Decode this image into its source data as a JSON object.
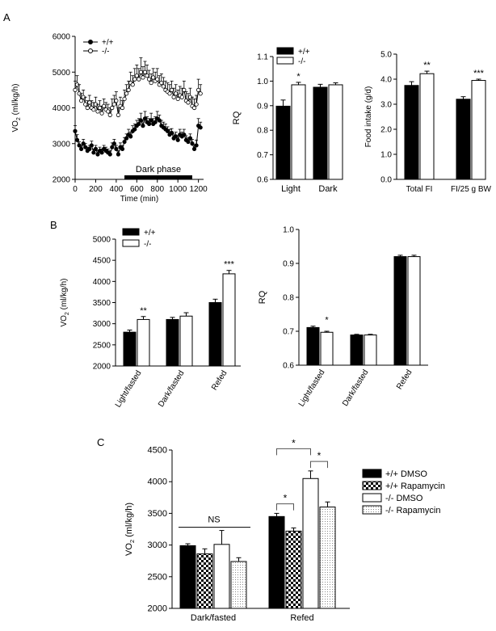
{
  "panel_labels": {
    "A": "A",
    "B": "B",
    "C": "C"
  },
  "legend_labels": {
    "wt": "+/+",
    "ko": "-/-"
  },
  "vo2_axis_label": "VO2 (ml/kg/h)",
  "vo2_sub": "2",
  "vo2_unit": " (ml/kg/h)",
  "colors": {
    "wt": "#000000",
    "ko": "#ffffff",
    "axis": "#000000"
  },
  "chart_data": [
    {
      "id": "A1",
      "type": "line",
      "xlabel": "Time (min)",
      "ylabel": "VO2 (ml/kg/h)",
      "xlim": [
        0,
        1250
      ],
      "ylim": [
        2000,
        6000
      ],
      "xticks": [
        0,
        200,
        400,
        600,
        800,
        1000,
        1200
      ],
      "yticks": [
        2000,
        3000,
        4000,
        5000,
        6000
      ],
      "annotation": "Dark phase",
      "dark_phase": [
        480,
        1140
      ],
      "series": [
        {
          "name": "+/+",
          "marker": "filled",
          "x": [
            0,
            20,
            40,
            60,
            80,
            100,
            120,
            140,
            160,
            180,
            200,
            220,
            240,
            260,
            280,
            300,
            320,
            340,
            360,
            380,
            400,
            420,
            440,
            460,
            480,
            500,
            520,
            540,
            560,
            580,
            600,
            620,
            640,
            660,
            680,
            700,
            720,
            740,
            760,
            780,
            800,
            820,
            840,
            860,
            880,
            900,
            920,
            940,
            960,
            980,
            1000,
            1020,
            1040,
            1060,
            1080,
            1100,
            1120,
            1140,
            1160,
            1180,
            1200,
            1220
          ],
          "y": [
            3350,
            3100,
            2950,
            2850,
            3000,
            2900,
            2800,
            2850,
            2950,
            2750,
            2850,
            2700,
            2800,
            2750,
            2850,
            2800,
            2750,
            2700,
            2900,
            3000,
            2850,
            2700,
            2900,
            2850,
            3050,
            3150,
            3250,
            3200,
            3350,
            3400,
            3500,
            3550,
            3650,
            3500,
            3700,
            3600,
            3550,
            3650,
            3550,
            3600,
            3700,
            3650,
            3500,
            3450,
            3400,
            3350,
            3250,
            3300,
            3150,
            3200,
            3100,
            3250,
            3200,
            3250,
            3100,
            3050,
            3150,
            3000,
            2850,
            2950,
            3500,
            3450
          ],
          "err": [
            150,
            150,
            100,
            100,
            120,
            100,
            100,
            100,
            120,
            100,
            100,
            100,
            100,
            100,
            100,
            100,
            100,
            100,
            120,
            120,
            100,
            100,
            120,
            100,
            120,
            120,
            150,
            120,
            150,
            150,
            150,
            150,
            200,
            150,
            200,
            150,
            150,
            200,
            150,
            150,
            200,
            150,
            150,
            150,
            150,
            120,
            150,
            120,
            120,
            120,
            120,
            150,
            120,
            150,
            120,
            120,
            120,
            120,
            120,
            150,
            200,
            150
          ]
        },
        {
          "name": "-/-",
          "marker": "open",
          "x": [
            0,
            20,
            40,
            60,
            80,
            100,
            120,
            140,
            160,
            180,
            200,
            220,
            240,
            260,
            280,
            300,
            320,
            340,
            360,
            380,
            400,
            420,
            440,
            460,
            480,
            500,
            520,
            540,
            560,
            580,
            600,
            620,
            640,
            660,
            680,
            700,
            720,
            740,
            760,
            780,
            800,
            820,
            840,
            860,
            880,
            900,
            920,
            940,
            960,
            980,
            1000,
            1020,
            1040,
            1060,
            1080,
            1100,
            1120,
            1140,
            1160,
            1180,
            1200,
            1220
          ],
          "y": [
            4500,
            4650,
            4400,
            4200,
            4300,
            4100,
            4000,
            4150,
            4000,
            3950,
            4100,
            3900,
            4000,
            3850,
            4050,
            3950,
            3900,
            3800,
            4000,
            4100,
            4200,
            3800,
            4050,
            4000,
            4250,
            4400,
            4500,
            4700,
            4650,
            4800,
            4900,
            4800,
            5000,
            4850,
            5000,
            4900,
            4800,
            4700,
            4850,
            4750,
            4800,
            4650,
            4700,
            4600,
            4500,
            4450,
            4400,
            4500,
            4300,
            4400,
            4250,
            4350,
            4300,
            4500,
            4200,
            4150,
            4300,
            4050,
            4000,
            4100,
            4500,
            4400
          ],
          "err": [
            250,
            250,
            250,
            200,
            200,
            200,
            200,
            200,
            200,
            200,
            200,
            200,
            200,
            200,
            200,
            200,
            200,
            200,
            250,
            250,
            250,
            200,
            250,
            200,
            250,
            250,
            250,
            300,
            250,
            300,
            300,
            300,
            400,
            300,
            300,
            300,
            250,
            250,
            250,
            250,
            300,
            250,
            250,
            250,
            250,
            250,
            250,
            250,
            250,
            250,
            250,
            250,
            250,
            250,
            250,
            250,
            250,
            250,
            250,
            250,
            300,
            250
          ]
        }
      ]
    },
    {
      "id": "A2",
      "type": "bar",
      "ylabel": "RQ",
      "ylim": [
        0.6,
        1.1
      ],
      "yticks": [
        0.6,
        0.7,
        0.8,
        0.9,
        1.0,
        1.1
      ],
      "ytick_labels": [
        "0.6",
        "0.7",
        "0.8",
        "0.9",
        "1.0",
        "1.1"
      ],
      "categories": [
        "Light",
        "Dark"
      ],
      "series": [
        {
          "name": "+/+",
          "values": [
            0.898,
            0.975
          ],
          "err": [
            0.025,
            0.012
          ]
        },
        {
          "name": "-/-",
          "values": [
            0.985,
            0.985
          ],
          "err": [
            0.01,
            0.008
          ]
        }
      ],
      "significance": [
        "*",
        ""
      ]
    },
    {
      "id": "A3",
      "type": "bar",
      "ylabel": "Food intake (g/d)",
      "ylim": [
        0,
        5
      ],
      "yticks": [
        0,
        1,
        2,
        3,
        4,
        5
      ],
      "ytick_labels": [
        "0.0",
        "1.0",
        "2.0",
        "3.0",
        "4.0",
        "5.0"
      ],
      "categories": [
        "Total FI",
        "FI/25 g BW"
      ],
      "series": [
        {
          "name": "+/+",
          "values": [
            3.75,
            3.2
          ],
          "err": [
            0.15,
            0.1
          ]
        },
        {
          "name": "-/-",
          "values": [
            4.22,
            3.95
          ],
          "err": [
            0.1,
            0.05
          ]
        }
      ],
      "significance": [
        "**",
        "***"
      ]
    },
    {
      "id": "B1",
      "type": "bar",
      "ylabel": "VO2 (ml/kg/h)",
      "ylim": [
        2000,
        5000
      ],
      "yticks": [
        2000,
        2500,
        3000,
        3500,
        4000,
        4500,
        5000
      ],
      "ytick_labels": [
        "2000",
        "2500",
        "3000",
        "3500",
        "4000",
        "4500",
        "5000"
      ],
      "categories": [
        "Light/fasted",
        "Dark/fasted",
        "Refed"
      ],
      "series": [
        {
          "name": "+/+",
          "values": [
            2800,
            3100,
            3500
          ],
          "err": [
            50,
            50,
            80
          ]
        },
        {
          "name": "-/-",
          "values": [
            3100,
            3180,
            4180
          ],
          "err": [
            70,
            80,
            80
          ]
        }
      ],
      "significance": [
        "**",
        "",
        "***"
      ]
    },
    {
      "id": "B2",
      "type": "bar",
      "ylabel": "RQ",
      "ylim": [
        0.6,
        1.0
      ],
      "yticks": [
        0.6,
        0.7,
        0.8,
        0.9,
        1.0
      ],
      "ytick_labels": [
        "0.6",
        "0.7",
        "0.8",
        "0.9",
        "1.0"
      ],
      "categories": [
        "Light/fasted",
        "Dark/fasted",
        "Refed"
      ],
      "series": [
        {
          "name": "+/+",
          "values": [
            0.711,
            0.689,
            0.92
          ],
          "err": [
            0.004,
            0.002,
            0.004
          ]
        },
        {
          "name": "-/-",
          "values": [
            0.697,
            0.689,
            0.92
          ],
          "err": [
            0.003,
            0.002,
            0.004
          ]
        }
      ],
      "significance": [
        "*",
        "",
        ""
      ]
    },
    {
      "id": "C",
      "type": "bar",
      "ylabel": "VO2 (ml/kg/h)",
      "ylim": [
        2000,
        4500
      ],
      "yticks": [
        2000,
        2500,
        3000,
        3500,
        4000,
        4500
      ],
      "ytick_labels": [
        "2000",
        "2500",
        "3000",
        "3500",
        "4000",
        "4500"
      ],
      "categories": [
        "Dark/fasted",
        "Refed"
      ],
      "series": [
        {
          "name": "+/+ DMSO",
          "values": [
            2990,
            3450
          ],
          "err": [
            30,
            50
          ],
          "fill": "solid"
        },
        {
          "name": "+/+ Rapamycin",
          "values": [
            2860,
            3220
          ],
          "err": [
            80,
            50
          ],
          "fill": "check"
        },
        {
          "name": "-/-  DMSO",
          "values": [
            3010,
            4050
          ],
          "err": [
            220,
            120
          ],
          "fill": "white"
        },
        {
          "name": "-/-  Rapamycin",
          "values": [
            2740,
            3600
          ],
          "err": [
            60,
            80
          ],
          "fill": "dots"
        }
      ],
      "annotations": {
        "ns": "NS",
        "star": "*"
      }
    }
  ]
}
